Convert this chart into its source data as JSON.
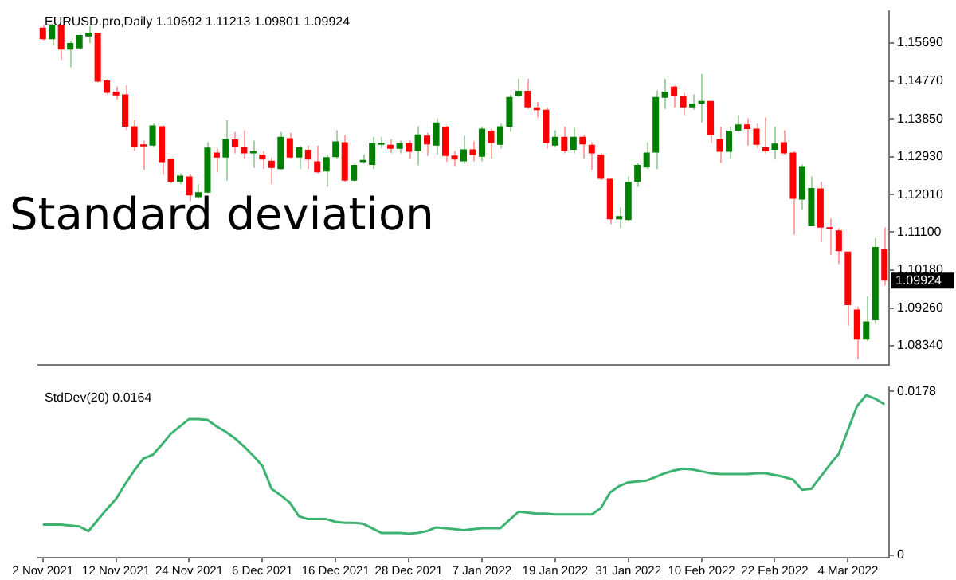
{
  "chart_data": [
    {
      "type": "candlestick",
      "title": "EURUSD.pro,Daily 1.10692 1.11213 1.09801 1.09924",
      "categories": [
        null,
        null,
        null,
        null,
        null,
        null,
        null,
        null,
        null,
        null,
        null,
        null,
        null,
        null,
        null,
        null,
        null,
        null,
        null,
        null,
        null,
        null,
        null,
        null,
        null,
        null,
        null,
        null,
        null,
        null,
        null,
        null,
        null,
        null,
        null,
        null,
        null,
        null,
        null,
        null,
        null,
        null,
        null,
        null,
        null,
        null,
        null,
        null,
        null,
        null,
        null,
        null,
        null,
        null,
        null,
        null,
        null,
        null,
        null,
        null,
        null,
        null,
        null,
        null,
        null,
        null,
        null,
        null,
        null,
        null,
        null,
        null,
        null,
        null,
        null,
        null,
        null,
        null,
        null,
        null,
        null,
        null,
        null,
        null,
        null,
        null,
        null,
        null,
        null,
        null,
        null,
        null,
        null
      ],
      "ohlc": [
        [
          1.1606,
          1.1613,
          1.1575,
          1.1578
        ],
        [
          1.1578,
          1.1615,
          1.1563,
          1.1613
        ],
        [
          1.1613,
          1.1613,
          1.1528,
          1.1553
        ],
        [
          1.1553,
          1.1575,
          1.151,
          1.1569
        ],
        [
          1.1556,
          1.159,
          1.1553,
          1.1588
        ],
        [
          1.1585,
          1.161,
          1.1569,
          1.1594
        ],
        [
          1.1594,
          1.1594,
          1.1473,
          1.1475
        ],
        [
          1.1478,
          1.1482,
          1.1444,
          1.1448
        ],
        [
          1.1451,
          1.1463,
          1.1432,
          1.1442
        ],
        [
          1.1444,
          1.1466,
          1.1357,
          1.1366
        ],
        [
          1.1367,
          1.1382,
          1.1307,
          1.1317
        ],
        [
          1.1323,
          1.1332,
          1.1261,
          1.1318
        ],
        [
          1.132,
          1.1373,
          1.1316,
          1.1369
        ],
        [
          1.1367,
          1.1369,
          1.1249,
          1.128
        ],
        [
          1.1288,
          1.1288,
          1.1228,
          1.1232
        ],
        [
          1.1232,
          1.1253,
          1.1226,
          1.1247
        ],
        [
          1.1245,
          1.1251,
          1.1185,
          1.1199
        ],
        [
          1.1195,
          1.1226,
          1.1191,
          1.1207
        ],
        [
          1.1206,
          1.1328,
          1.1204,
          1.1315
        ],
        [
          1.1303,
          1.1313,
          1.1255,
          1.1291
        ],
        [
          1.1291,
          1.1382,
          1.1235,
          1.1336
        ],
        [
          1.1335,
          1.1353,
          1.1301,
          1.1317
        ],
        [
          1.1317,
          1.1357,
          1.1288,
          1.1301
        ],
        [
          1.1301,
          1.1332,
          1.1266,
          1.1307
        ],
        [
          1.1298,
          1.1307,
          1.1263,
          1.1286
        ],
        [
          1.1283,
          1.1291,
          1.1226,
          1.1266
        ],
        [
          1.1263,
          1.1353,
          1.1261,
          1.1341
        ],
        [
          1.1338,
          1.1351,
          1.1288,
          1.1291
        ],
        [
          1.1291,
          1.132,
          1.1263,
          1.1316
        ],
        [
          1.131,
          1.132,
          1.1263,
          1.1286
        ],
        [
          1.1282,
          1.132,
          1.1253,
          1.1255
        ],
        [
          1.1257,
          1.1297,
          1.122,
          1.1292
        ],
        [
          1.1292,
          1.1357,
          1.1288,
          1.133
        ],
        [
          1.1328,
          1.1345,
          1.1232,
          1.1235
        ],
        [
          1.1235,
          1.1276,
          1.1232,
          1.1273
        ],
        [
          1.128,
          1.1298,
          1.1276,
          1.1285
        ],
        [
          1.1273,
          1.1341,
          1.1263,
          1.1326
        ],
        [
          1.1322,
          1.1341,
          1.1313,
          1.1326
        ],
        [
          1.1322,
          1.1336,
          1.1301,
          1.1312
        ],
        [
          1.1312,
          1.1332,
          1.1301,
          1.1326
        ],
        [
          1.1326,
          1.1332,
          1.1288,
          1.1305
        ],
        [
          1.1307,
          1.1367,
          1.1272,
          1.1347
        ],
        [
          1.1344,
          1.1351,
          1.1295,
          1.1323
        ],
        [
          1.132,
          1.1386,
          1.1298,
          1.1376
        ],
        [
          1.1366,
          1.1369,
          1.1281,
          1.1295
        ],
        [
          1.1296,
          1.1307,
          1.127,
          1.1286
        ],
        [
          1.1282,
          1.1344,
          1.1276,
          1.1311
        ],
        [
          1.1311,
          1.133,
          1.1282,
          1.1297
        ],
        [
          1.1293,
          1.1366,
          1.1282,
          1.1361
        ],
        [
          1.1356,
          1.1361,
          1.1288,
          1.1326
        ],
        [
          1.1322,
          1.1373,
          1.1313,
          1.1367
        ],
        [
          1.1366,
          1.1444,
          1.1353,
          1.1438
        ],
        [
          1.1441,
          1.1482,
          1.1438,
          1.1453
        ],
        [
          1.1453,
          1.1482,
          1.1409,
          1.1413
        ],
        [
          1.1413,
          1.1426,
          1.1388,
          1.1406
        ],
        [
          1.1407,
          1.1413,
          1.1313,
          1.1326
        ],
        [
          1.132,
          1.1357,
          1.1316,
          1.1341
        ],
        [
          1.1341,
          1.1366,
          1.1301,
          1.1307
        ],
        [
          1.131,
          1.1363,
          1.1301,
          1.1341
        ],
        [
          1.1341,
          1.1345,
          1.1288,
          1.1323
        ],
        [
          1.1322,
          1.1328,
          1.1261,
          1.1301
        ],
        [
          1.1298,
          1.1301,
          1.1236,
          1.1239
        ],
        [
          1.1239,
          1.1239,
          1.1129,
          1.1141
        ],
        [
          1.1141,
          1.117,
          1.112,
          1.1149
        ],
        [
          1.1139,
          1.1245,
          1.1136,
          1.1232
        ],
        [
          1.1232,
          1.1278,
          1.122,
          1.1273
        ],
        [
          1.1267,
          1.1328,
          1.1263,
          1.1303
        ],
        [
          1.1303,
          1.1454,
          1.1263,
          1.1438
        ],
        [
          1.1436,
          1.1482,
          1.1409,
          1.1451
        ],
        [
          1.1463,
          1.1466,
          1.1413,
          1.1441
        ],
        [
          1.1441,
          1.1448,
          1.1394,
          1.1413
        ],
        [
          1.1413,
          1.1444,
          1.1407,
          1.1422
        ],
        [
          1.1422,
          1.1494,
          1.1376,
          1.1428
        ],
        [
          1.1428,
          1.1428,
          1.1326,
          1.1345
        ],
        [
          1.1336,
          1.1366,
          1.1278,
          1.1305
        ],
        [
          1.1305,
          1.1366,
          1.1288,
          1.1356
        ],
        [
          1.1356,
          1.1394,
          1.1353,
          1.1371
        ],
        [
          1.1371,
          1.1386,
          1.132,
          1.136
        ],
        [
          1.1361,
          1.1373,
          1.1313,
          1.1322
        ],
        [
          1.1316,
          1.1388,
          1.1301,
          1.1306
        ],
        [
          1.131,
          1.1366,
          1.1286,
          1.1325
        ],
        [
          1.1328,
          1.1357,
          1.1298,
          1.1301
        ],
        [
          1.1303,
          1.1307,
          1.1104,
          1.1191
        ],
        [
          1.1189,
          1.1274,
          1.1164,
          1.127
        ],
        [
          1.1124,
          1.1245,
          1.1124,
          1.1217
        ],
        [
          1.1216,
          1.1232,
          1.1086,
          1.1121
        ],
        [
          1.112,
          1.1143,
          1.1055,
          1.1118
        ],
        [
          1.1114,
          1.112,
          1.1033,
          1.1064
        ],
        [
          1.1063,
          1.1063,
          1.0883,
          1.0933
        ],
        [
          1.0922,
          1.0929,
          1.0802,
          1.0849
        ],
        [
          1.0849,
          1.0954,
          1.0846,
          1.0893
        ],
        [
          1.0896,
          1.1095,
          1.0887,
          1.1074
        ],
        [
          1.10692,
          1.11213,
          1.09801,
          1.09924
        ]
      ],
      "colors": [
        "#ff0000",
        "#008000",
        "#ff0000",
        "#008000",
        "#008000",
        "#008000",
        "#ff0000",
        "#ff0000",
        "#ff0000",
        "#ff0000",
        "#ff0000",
        "#ff0000",
        "#008000",
        "#ff0000",
        "#ff0000",
        "#008000",
        "#ff0000",
        "#008000",
        "#008000",
        "#ff0000",
        "#008000",
        "#ff0000",
        "#ff0000",
        "#008000",
        "#ff0000",
        "#ff0000",
        "#008000",
        "#ff0000",
        "#008000",
        "#ff0000",
        "#ff0000",
        "#008000",
        "#008000",
        "#ff0000",
        "#008000",
        "#008000",
        "#008000",
        "#008000",
        "#ff0000",
        "#008000",
        "#ff0000",
        "#008000",
        "#ff0000",
        "#008000",
        "#ff0000",
        "#ff0000",
        "#008000",
        "#ff0000",
        "#008000",
        "#ff0000",
        "#008000",
        "#008000",
        "#008000",
        "#ff0000",
        "#ff0000",
        "#ff0000",
        "#008000",
        "#ff0000",
        "#008000",
        "#ff0000",
        "#ff0000",
        "#ff0000",
        "#ff0000",
        "#008000",
        "#008000",
        "#008000",
        "#008000",
        "#008000",
        "#008000",
        "#ff0000",
        "#ff0000",
        "#008000",
        "#008000",
        "#ff0000",
        "#ff0000",
        "#008000",
        "#008000",
        "#ff0000",
        "#ff0000",
        "#ff0000",
        "#008000",
        "#ff0000",
        "#ff0000",
        "#008000",
        "#008000",
        "#ff0000",
        "#ff0000",
        "#ff0000",
        "#ff0000",
        "#ff0000",
        "#008000",
        "#008000",
        "#ff0000"
      ],
      "ylim": [
        1.0787,
        1.1647
      ],
      "yticks": [
        {
          "value": 1.1569,
          "label": "1.15690"
        },
        {
          "value": 1.1477,
          "label": "1.14770"
        },
        {
          "value": 1.1385,
          "label": "1.13850"
        },
        {
          "value": 1.1293,
          "label": "1.12930"
        },
        {
          "value": 1.1201,
          "label": "1.12010"
        },
        {
          "value": 1.111,
          "label": "1.11100"
        },
        {
          "value": 1.1018,
          "label": "1.10180"
        },
        {
          "value": 1.0926,
          "label": "1.09260"
        },
        {
          "value": 1.0834,
          "label": "1.08340"
        }
      ],
      "tick_labels": "y",
      "grid": false,
      "annotations": [
        "Standard deviation",
        "1.09924"
      ]
    },
    {
      "type": "line",
      "title": "StdDev(20) 0.0164",
      "categories": [
        "2 Nov 2021",
        null,
        null,
        null,
        null,
        null,
        null,
        null,
        "12 Nov 2021",
        null,
        null,
        null,
        null,
        null,
        null,
        null,
        "24 Nov 2021",
        null,
        null,
        null,
        null,
        null,
        null,
        null,
        "6 Dec 2021",
        null,
        null,
        null,
        null,
        null,
        null,
        null,
        "16 Dec 2021",
        null,
        null,
        null,
        null,
        null,
        null,
        null,
        "28 Dec 2021",
        null,
        null,
        null,
        null,
        null,
        null,
        null,
        "7 Jan 2022",
        null,
        null,
        null,
        null,
        null,
        null,
        null,
        "19 Jan 2022",
        null,
        null,
        null,
        null,
        null,
        null,
        null,
        "31 Jan 2022",
        null,
        null,
        null,
        null,
        null,
        null,
        null,
        "10 Feb 2022",
        null,
        null,
        null,
        null,
        null,
        null,
        null,
        "22 Feb 2022",
        null,
        null,
        null,
        null,
        null,
        null,
        null,
        "4 Mar 2022",
        null,
        null,
        null,
        null
      ],
      "series": [
        {
          "color": "#3cb371",
          "values": [
            0.0033,
            0.0033,
            0.0033,
            0.0032,
            0.0031,
            0.0026,
            0.0038,
            0.005,
            0.0061,
            0.0077,
            0.0092,
            0.0105,
            0.0109,
            0.012,
            0.0132,
            0.014,
            0.0148,
            0.0148,
            0.0147,
            0.014,
            0.0134,
            0.0127,
            0.0118,
            0.0108,
            0.0097,
            0.0072,
            0.0065,
            0.0057,
            0.0042,
            0.0039,
            0.0039,
            0.0039,
            0.0036,
            0.0035,
            0.0035,
            0.0034,
            0.0029,
            0.0024,
            0.0024,
            0.0024,
            0.0023,
            0.0024,
            0.0026,
            0.003,
            0.0029,
            0.0028,
            0.0027,
            0.0028,
            0.0029,
            0.0029,
            0.0029,
            0.0038,
            0.0047,
            0.0046,
            0.0045,
            0.0045,
            0.0044,
            0.0044,
            0.0044,
            0.0044,
            0.0044,
            0.0051,
            0.0068,
            0.0075,
            0.0079,
            0.008,
            0.0081,
            0.0085,
            0.0089,
            0.0092,
            0.0094,
            0.0093,
            0.0091,
            0.0089,
            0.0088,
            0.0088,
            0.0088,
            0.0088,
            0.0089,
            0.0089,
            0.0087,
            0.0085,
            0.0082,
            0.0071,
            0.0072,
            0.0085,
            0.0098,
            0.011,
            0.0136,
            0.0162,
            0.0174,
            0.017,
            0.0164
          ]
        }
      ],
      "ylim": [
        -0.0003,
        0.0183
      ],
      "yticks": [
        0.0178,
        0
      ],
      "grid": false
    }
  ]
}
